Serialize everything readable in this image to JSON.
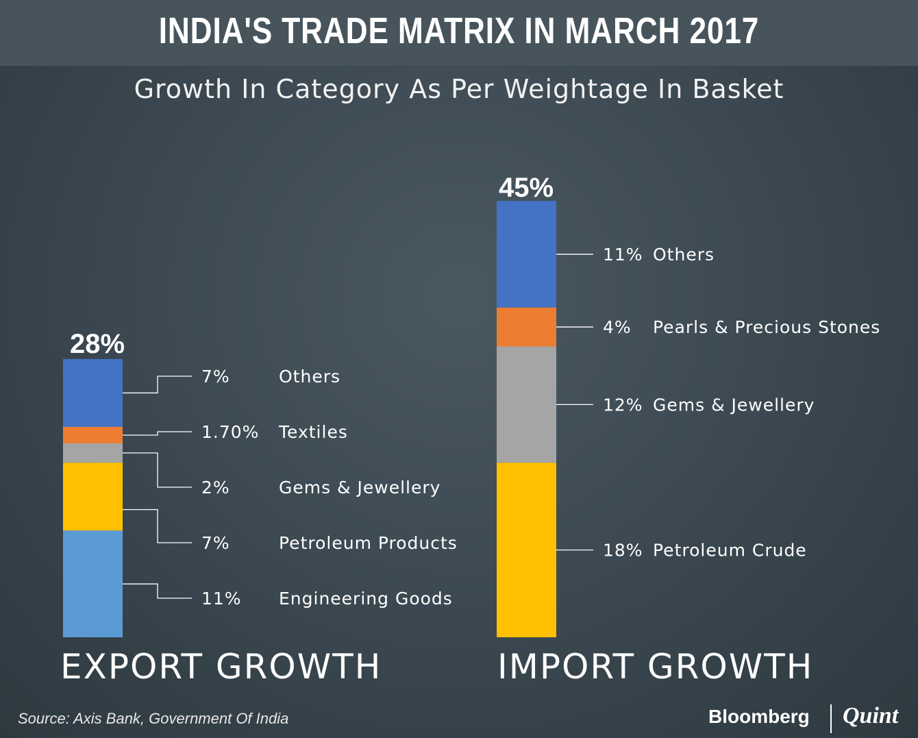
{
  "title": "INDIA'S TRADE MATRIX IN MARCH 2017",
  "subtitle": "Growth In Category As Per Weightage In Basket",
  "source": "Source: Axis Bank, Government Of India",
  "brand": {
    "left": "Bloomberg",
    "right": "Quint"
  },
  "colors": {
    "others": "#4472c4",
    "orange": "#ed7d31",
    "grey": "#a5a5a5",
    "yellow": "#ffc000",
    "lightblue": "#5b9bd5"
  },
  "chart_data": {
    "type": "bar",
    "stacked": true,
    "groups": [
      {
        "name": "EXPORT GROWTH",
        "total_label": "28%",
        "segments": [
          {
            "label": "Others",
            "value_label": "7%",
            "value": 7,
            "color": "#4472c4"
          },
          {
            "label": "Textiles",
            "value_label": "1.70%",
            "value": 1.7,
            "color": "#ed7d31"
          },
          {
            "label": "Gems & Jewellery",
            "value_label": "2%",
            "value": 2,
            "color": "#a5a5a5"
          },
          {
            "label": "Petroleum Products",
            "value_label": "7%",
            "value": 7,
            "color": "#ffc000"
          },
          {
            "label": "Engineering Goods",
            "value_label": "11%",
            "value": 11,
            "color": "#5b9bd5"
          }
        ]
      },
      {
        "name": "IMPORT GROWTH",
        "total_label": "45%",
        "segments": [
          {
            "label": "Others",
            "value_label": "11%",
            "value": 11,
            "color": "#4472c4"
          },
          {
            "label": "Pearls & Precious Stones",
            "value_label": "4%",
            "value": 4,
            "color": "#ed7d31"
          },
          {
            "label": "Gems & Jewellery",
            "value_label": "12%",
            "value": 12,
            "color": "#a5a5a5"
          },
          {
            "label": "Petroleum Crude",
            "value_label": "18%",
            "value": 18,
            "color": "#ffc000"
          }
        ]
      }
    ]
  }
}
